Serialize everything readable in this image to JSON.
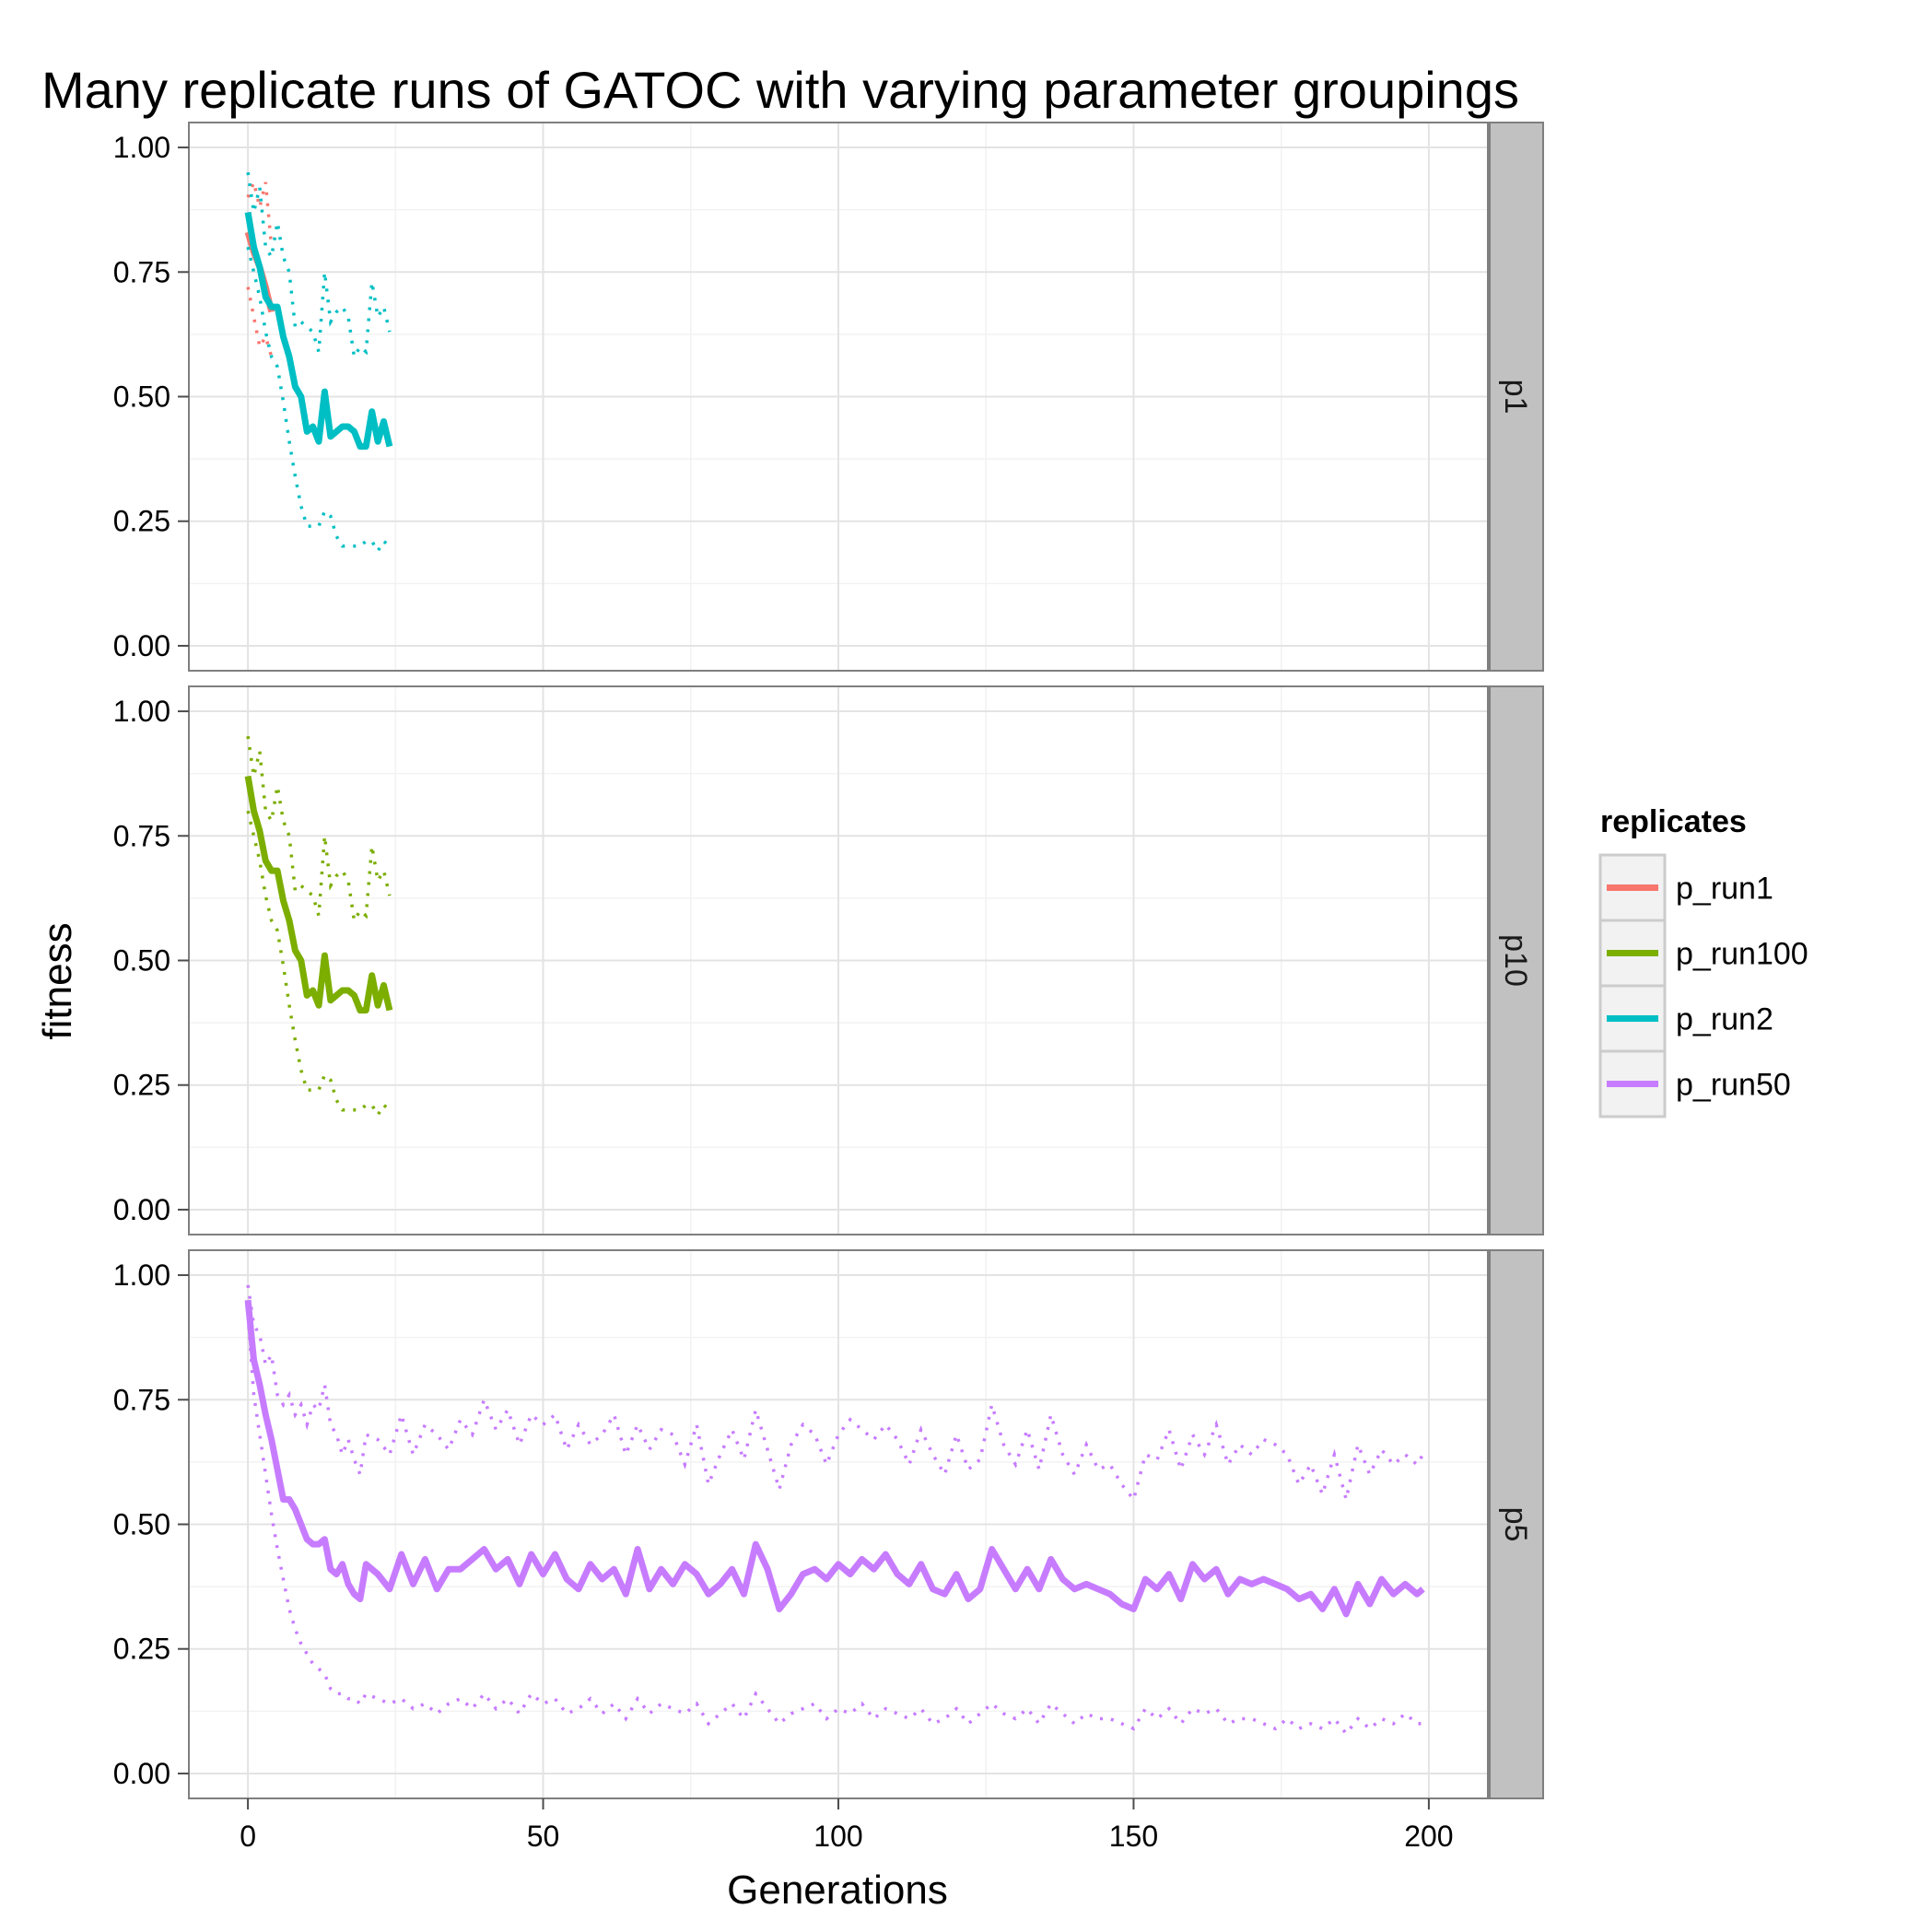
{
  "chart_data": {
    "type": "line",
    "title": "Many replicate runs of GATOC with varying parameter groupings",
    "xlabel": "Generations",
    "ylabel": "fitness",
    "xlim": [
      -10,
      210
    ],
    "ylim": [
      -0.05,
      1.05
    ],
    "x_ticks": [
      0,
      50,
      100,
      150,
      200
    ],
    "x_tick_labels": [
      "0",
      "50",
      "100",
      "150",
      "200"
    ],
    "y_ticks": [
      0,
      0.25,
      0.5,
      0.75,
      1.0
    ],
    "y_tick_labels": [
      "0.00",
      "0.25",
      "0.50",
      "0.75",
      "1.00"
    ],
    "grid": true,
    "facet_strip": "right",
    "legend": {
      "title": "replicates",
      "position": "right",
      "entries": [
        {
          "name": "p_run1",
          "color": "#F8766D"
        },
        {
          "name": "p_run100",
          "color": "#7CAE00"
        },
        {
          "name": "p_run2",
          "color": "#00BFC4"
        },
        {
          "name": "p_run50",
          "color": "#C77CFF"
        }
      ]
    },
    "panels": [
      {
        "label": "p1",
        "series": [
          {
            "name": "p_run1",
            "color": "#F8766D",
            "x": [
              0,
              1,
              2,
              3,
              4
            ],
            "mean": [
              0.83,
              0.79,
              0.76,
              0.72,
              0.67
            ],
            "upper": [
              0.9,
              0.93,
              0.88,
              0.93,
              0.8
            ],
            "lower": [
              0.72,
              0.66,
              0.6,
              0.62,
              0.58
            ]
          },
          {
            "name": "p_run2",
            "color": "#00BFC4",
            "x": [
              0,
              1,
              2,
              3,
              4,
              5,
              6,
              7,
              8,
              9,
              10,
              11,
              12,
              13,
              14,
              15,
              16,
              17,
              18,
              19,
              20,
              21,
              22,
              23,
              24
            ],
            "mean": [
              0.87,
              0.8,
              0.76,
              0.7,
              0.68,
              0.68,
              0.62,
              0.58,
              0.52,
              0.5,
              0.43,
              0.44,
              0.41,
              0.51,
              0.42,
              0.43,
              0.44,
              0.44,
              0.43,
              0.4,
              0.4,
              0.47,
              0.41,
              0.45,
              0.4
            ],
            "upper": [
              0.95,
              0.87,
              0.92,
              0.8,
              0.78,
              0.85,
              0.78,
              0.75,
              0.64,
              0.65,
              0.64,
              0.63,
              0.59,
              0.75,
              0.65,
              0.67,
              0.68,
              0.66,
              0.58,
              0.6,
              0.59,
              0.73,
              0.66,
              0.68,
              0.63
            ],
            "lower": [
              0.8,
              0.75,
              0.7,
              0.63,
              0.58,
              0.56,
              0.49,
              0.41,
              0.34,
              0.28,
              0.24,
              0.24,
              0.24,
              0.27,
              0.26,
              0.22,
              0.2,
              0.2,
              0.2,
              0.2,
              0.21,
              0.21,
              0.19,
              0.21,
              0.2
            ]
          }
        ]
      },
      {
        "label": "p10",
        "series": [
          {
            "name": "p_run100",
            "color": "#7CAE00",
            "x": [
              0,
              1,
              2,
              3,
              4,
              5,
              6,
              7,
              8,
              9,
              10,
              11,
              12,
              13,
              14,
              15,
              16,
              17,
              18,
              19,
              20,
              21,
              22,
              23,
              24
            ],
            "mean": [
              0.87,
              0.8,
              0.76,
              0.7,
              0.68,
              0.68,
              0.62,
              0.58,
              0.52,
              0.5,
              0.43,
              0.44,
              0.41,
              0.51,
              0.42,
              0.43,
              0.44,
              0.44,
              0.43,
              0.4,
              0.4,
              0.47,
              0.41,
              0.45,
              0.4
            ],
            "upper": [
              0.95,
              0.87,
              0.92,
              0.8,
              0.78,
              0.85,
              0.78,
              0.75,
              0.64,
              0.65,
              0.64,
              0.63,
              0.59,
              0.75,
              0.65,
              0.67,
              0.68,
              0.66,
              0.58,
              0.6,
              0.59,
              0.73,
              0.66,
              0.68,
              0.63
            ],
            "lower": [
              0.8,
              0.75,
              0.7,
              0.63,
              0.58,
              0.56,
              0.49,
              0.41,
              0.34,
              0.28,
              0.24,
              0.24,
              0.24,
              0.27,
              0.26,
              0.22,
              0.2,
              0.2,
              0.2,
              0.2,
              0.21,
              0.21,
              0.19,
              0.21,
              0.2
            ]
          }
        ]
      },
      {
        "label": "p5",
        "series": [
          {
            "name": "p_run50",
            "color": "#C77CFF",
            "x": [
              0,
              1,
              2,
              3,
              4,
              5,
              6,
              7,
              8,
              9,
              10,
              11,
              12,
              13,
              14,
              15,
              16,
              17,
              18,
              19,
              20,
              22,
              24,
              26,
              28,
              30,
              32,
              34,
              36,
              38,
              40,
              42,
              44,
              46,
              48,
              50,
              52,
              54,
              56,
              58,
              60,
              62,
              64,
              66,
              68,
              70,
              72,
              74,
              76,
              78,
              80,
              82,
              84,
              86,
              88,
              90,
              92,
              94,
              96,
              98,
              100,
              102,
              104,
              106,
              108,
              110,
              112,
              114,
              116,
              118,
              120,
              122,
              124,
              126,
              128,
              130,
              132,
              134,
              136,
              138,
              140,
              142,
              144,
              146,
              148,
              150,
              152,
              154,
              156,
              158,
              160,
              162,
              164,
              166,
              168,
              170,
              172,
              174,
              176,
              178,
              180,
              182,
              184,
              186,
              188,
              190,
              192,
              194,
              196,
              198,
              199
            ],
            "mean": [
              0.95,
              0.83,
              0.78,
              0.72,
              0.67,
              0.61,
              0.55,
              0.55,
              0.53,
              0.5,
              0.47,
              0.46,
              0.46,
              0.47,
              0.41,
              0.4,
              0.42,
              0.38,
              0.36,
              0.35,
              0.42,
              0.4,
              0.37,
              0.44,
              0.38,
              0.43,
              0.37,
              0.41,
              0.41,
              0.43,
              0.45,
              0.41,
              0.43,
              0.38,
              0.44,
              0.4,
              0.44,
              0.39,
              0.37,
              0.42,
              0.39,
              0.41,
              0.36,
              0.45,
              0.37,
              0.41,
              0.38,
              0.42,
              0.4,
              0.36,
              0.38,
              0.41,
              0.36,
              0.46,
              0.41,
              0.33,
              0.36,
              0.4,
              0.41,
              0.39,
              0.42,
              0.4,
              0.43,
              0.41,
              0.44,
              0.4,
              0.38,
              0.42,
              0.37,
              0.36,
              0.4,
              0.35,
              0.37,
              0.45,
              0.41,
              0.37,
              0.41,
              0.37,
              0.43,
              0.39,
              0.37,
              0.38,
              0.37,
              0.36,
              0.34,
              0.33,
              0.39,
              0.37,
              0.4,
              0.35,
              0.42,
              0.39,
              0.41,
              0.36,
              0.39,
              0.38,
              0.39,
              0.38,
              0.37,
              0.35,
              0.36,
              0.33,
              0.37,
              0.32,
              0.38,
              0.34,
              0.39,
              0.36,
              0.38,
              0.36,
              0.37
            ],
            "upper": [
              0.98,
              0.9,
              0.88,
              0.82,
              0.84,
              0.76,
              0.74,
              0.76,
              0.72,
              0.74,
              0.7,
              0.74,
              0.73,
              0.78,
              0.7,
              0.68,
              0.64,
              0.67,
              0.63,
              0.6,
              0.68,
              0.67,
              0.64,
              0.72,
              0.64,
              0.7,
              0.68,
              0.65,
              0.71,
              0.68,
              0.75,
              0.69,
              0.73,
              0.66,
              0.72,
              0.7,
              0.72,
              0.65,
              0.7,
              0.66,
              0.68,
              0.72,
              0.64,
              0.7,
              0.65,
              0.69,
              0.68,
              0.62,
              0.7,
              0.58,
              0.64,
              0.69,
              0.63,
              0.73,
              0.65,
              0.57,
              0.66,
              0.7,
              0.68,
              0.62,
              0.68,
              0.71,
              0.69,
              0.67,
              0.7,
              0.67,
              0.62,
              0.69,
              0.64,
              0.6,
              0.68,
              0.61,
              0.63,
              0.74,
              0.66,
              0.62,
              0.69,
              0.61,
              0.72,
              0.64,
              0.6,
              0.66,
              0.61,
              0.62,
              0.58,
              0.55,
              0.64,
              0.63,
              0.69,
              0.61,
              0.68,
              0.64,
              0.7,
              0.62,
              0.66,
              0.64,
              0.67,
              0.66,
              0.64,
              0.58,
              0.62,
              0.56,
              0.64,
              0.55,
              0.66,
              0.6,
              0.65,
              0.62,
              0.64,
              0.62,
              0.64
            ],
            "lower": [
              0.92,
              0.76,
              0.68,
              0.6,
              0.52,
              0.45,
              0.39,
              0.33,
              0.29,
              0.26,
              0.24,
              0.22,
              0.21,
              0.2,
              0.17,
              0.16,
              0.16,
              0.15,
              0.15,
              0.14,
              0.16,
              0.15,
              0.14,
              0.15,
              0.13,
              0.14,
              0.12,
              0.14,
              0.15,
              0.13,
              0.16,
              0.13,
              0.15,
              0.12,
              0.16,
              0.14,
              0.15,
              0.12,
              0.13,
              0.15,
              0.12,
              0.14,
              0.11,
              0.15,
              0.12,
              0.14,
              0.13,
              0.12,
              0.14,
              0.1,
              0.12,
              0.14,
              0.11,
              0.16,
              0.13,
              0.1,
              0.12,
              0.13,
              0.14,
              0.11,
              0.13,
              0.12,
              0.14,
              0.11,
              0.13,
              0.12,
              0.11,
              0.13,
              0.1,
              0.11,
              0.13,
              0.1,
              0.12,
              0.14,
              0.12,
              0.11,
              0.13,
              0.1,
              0.14,
              0.12,
              0.1,
              0.12,
              0.11,
              0.11,
              0.1,
              0.09,
              0.13,
              0.11,
              0.13,
              0.1,
              0.13,
              0.12,
              0.13,
              0.1,
              0.11,
              0.11,
              0.1,
              0.09,
              0.11,
              0.09,
              0.1,
              0.09,
              0.11,
              0.08,
              0.11,
              0.09,
              0.11,
              0.1,
              0.12,
              0.1,
              0.1
            ]
          }
        ]
      }
    ]
  }
}
